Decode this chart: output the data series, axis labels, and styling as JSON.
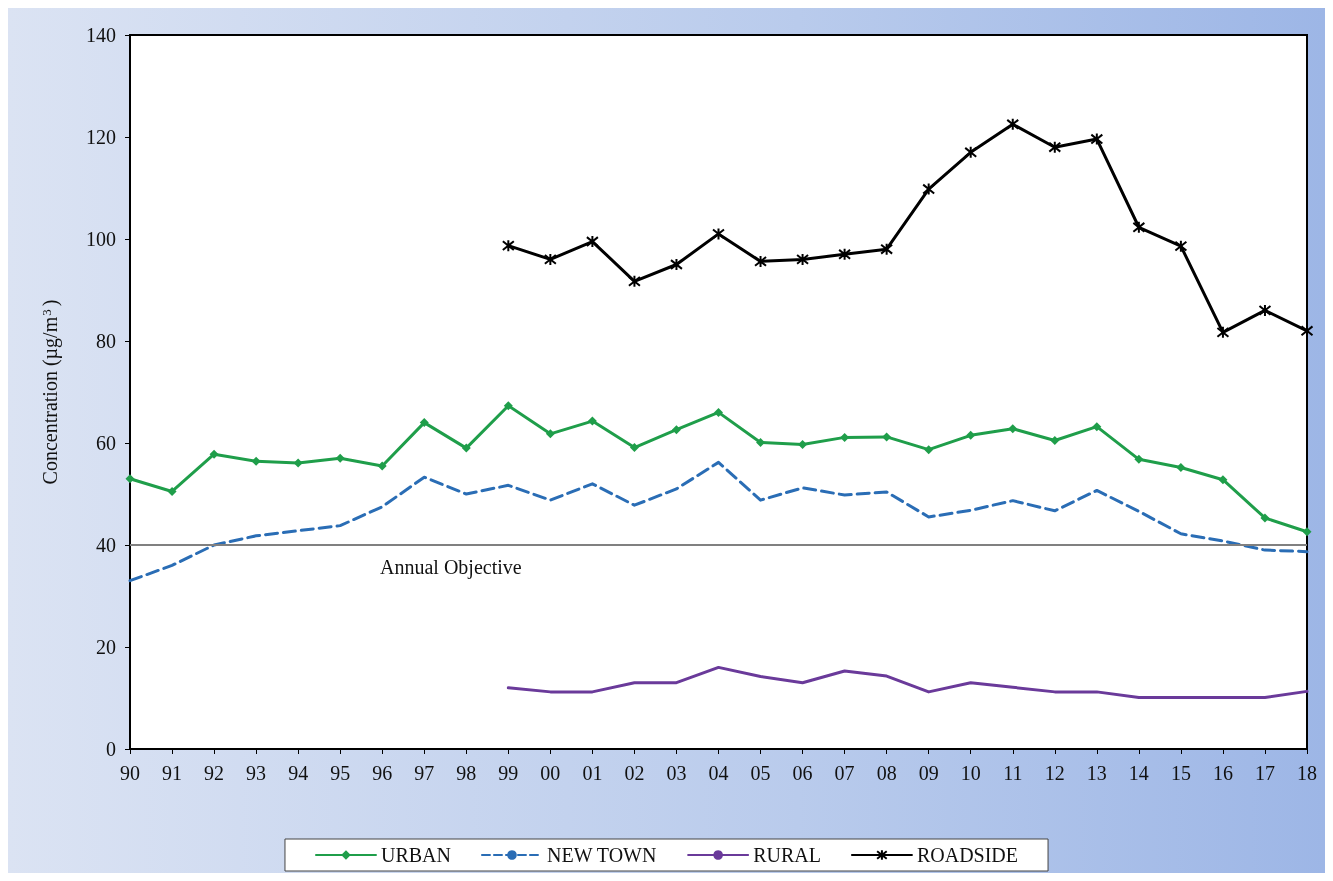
{
  "chart_data": {
    "type": "line",
    "ylabel": "Concentration (µg/m$^{3}$)",
    "categories": [
      "90",
      "91",
      "92",
      "93",
      "94",
      "95",
      "96",
      "97",
      "98",
      "99",
      "00",
      "01",
      "02",
      "03",
      "04",
      "05",
      "06",
      "07",
      "08",
      "09",
      "10",
      "11",
      "12",
      "13",
      "14",
      "15",
      "16",
      "17",
      "18"
    ],
    "series": [
      {
        "name": "URBAN",
        "color": "#1f9e4a",
        "marker": "diamond",
        "line_style": "solid",
        "values": [
          53,
          50.5,
          57.8,
          56.4,
          56.1,
          57,
          55.5,
          64,
          59,
          67.3,
          61.8,
          64.3,
          59.1,
          62.6,
          66,
          60.1,
          59.7,
          61.1,
          61.2,
          58.7,
          61.5,
          62.8,
          60.5,
          63.2,
          56.8,
          55.2,
          52.8,
          45.3,
          42.6
        ]
      },
      {
        "name": "NEW TOWN",
        "color": "#2a6db5",
        "marker": "none",
        "line_style": "dashed",
        "values": [
          33,
          36,
          40,
          41.8,
          42.8,
          43.8,
          47.5,
          53.3,
          50,
          51.7,
          48.8,
          52,
          47.8,
          51,
          56.2,
          48.8,
          51.2,
          49.8,
          50.4,
          45.5,
          46.8,
          48.7,
          46.7,
          50.7,
          46.6,
          42.2,
          40.8,
          39,
          38.7
        ]
      },
      {
        "name": "RURAL",
        "color": "#6a3a9a",
        "marker": "none",
        "line_style": "solid",
        "values": [
          null,
          null,
          null,
          null,
          null,
          null,
          null,
          null,
          null,
          12,
          11.2,
          11.2,
          13,
          13,
          16,
          14.2,
          13,
          15.3,
          14.3,
          11.2,
          13,
          12.1,
          11.2,
          11.2,
          10.1,
          10.1,
          10.1,
          10.1,
          11.3
        ]
      },
      {
        "name": "ROADSIDE",
        "color": "#000000",
        "marker": "cross",
        "line_style": "solid",
        "values": [
          null,
          null,
          null,
          null,
          null,
          null,
          null,
          null,
          null,
          98.7,
          96,
          99.5,
          91.7,
          95,
          101,
          95.6,
          96,
          97,
          98,
          109.8,
          117,
          122.5,
          118,
          119.6,
          102.3,
          98.6,
          81.7,
          86,
          82
        ]
      }
    ],
    "ylim": [
      0,
      140
    ],
    "yticks": [
      0,
      20,
      40,
      60,
      80,
      100,
      120,
      140
    ],
    "grid": false,
    "legend": "bottom",
    "ref_lines": [
      {
        "axis": "y",
        "value": 40,
        "label": "Annual Objective",
        "color": "#808080",
        "line_style": "solid"
      }
    ]
  }
}
